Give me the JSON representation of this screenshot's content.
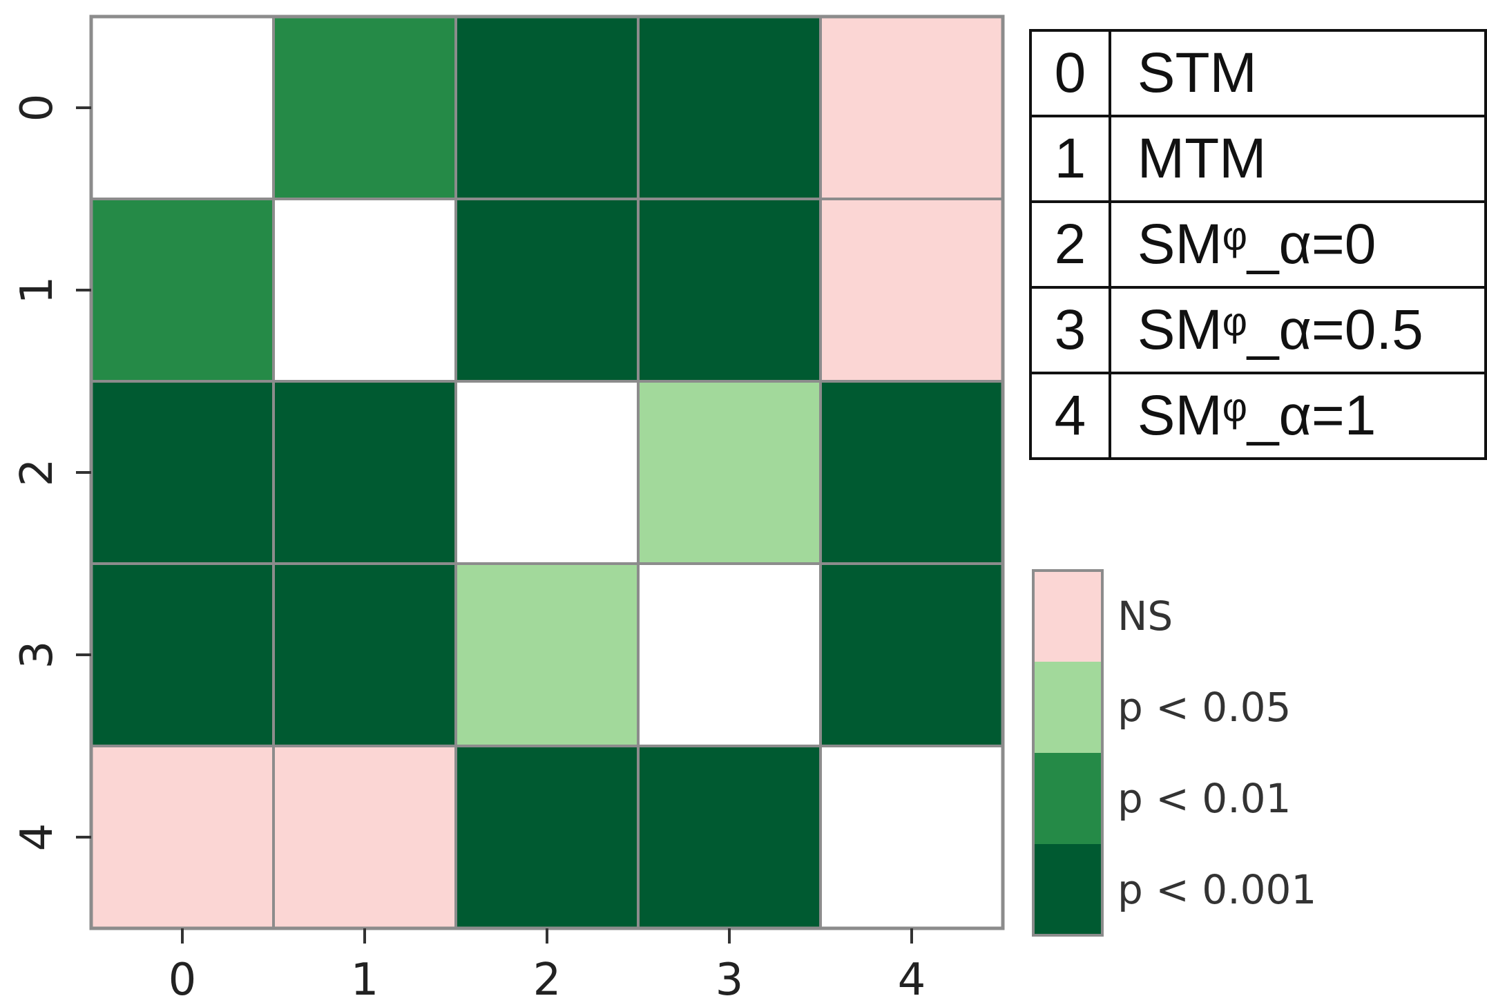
{
  "chart_data": {
    "type": "heatmap",
    "x_categories": [
      "0",
      "1",
      "2",
      "3",
      "4"
    ],
    "y_categories": [
      "0",
      "1",
      "2",
      "3",
      "4"
    ],
    "levels": [
      "none",
      "NS",
      "p < 0.05",
      "p < 0.01",
      "p < 0.001"
    ],
    "level_colors": {
      "none": "#ffffff",
      "NS": "#fbd6d4",
      "p < 0.05": "#a2d99b",
      "p < 0.01": "#258a47",
      "p < 0.001": "#005a31"
    },
    "matrix": [
      [
        "none",
        "p < 0.01",
        "p < 0.001",
        "p < 0.001",
        "NS"
      ],
      [
        "p < 0.01",
        "none",
        "p < 0.001",
        "p < 0.001",
        "NS"
      ],
      [
        "p < 0.001",
        "p < 0.001",
        "none",
        "p < 0.05",
        "p < 0.001"
      ],
      [
        "p < 0.001",
        "p < 0.001",
        "p < 0.05",
        "none",
        "p < 0.001"
      ],
      [
        "NS",
        "NS",
        "p < 0.001",
        "p < 0.001",
        "none"
      ]
    ],
    "legend": [
      "NS",
      "p < 0.05",
      "p < 0.01",
      "p < 0.001"
    ],
    "legend_placement": "right",
    "grid_color": "#8c8c8c",
    "key_table": [
      {
        "index": "0",
        "label": "STM"
      },
      {
        "index": "1",
        "label": "MTM"
      },
      {
        "index": "2",
        "label": "SMᵠ_α=0"
      },
      {
        "index": "3",
        "label": "SMᵠ_α=0.5"
      },
      {
        "index": "4",
        "label": "SMᵠ_α=1"
      }
    ]
  }
}
